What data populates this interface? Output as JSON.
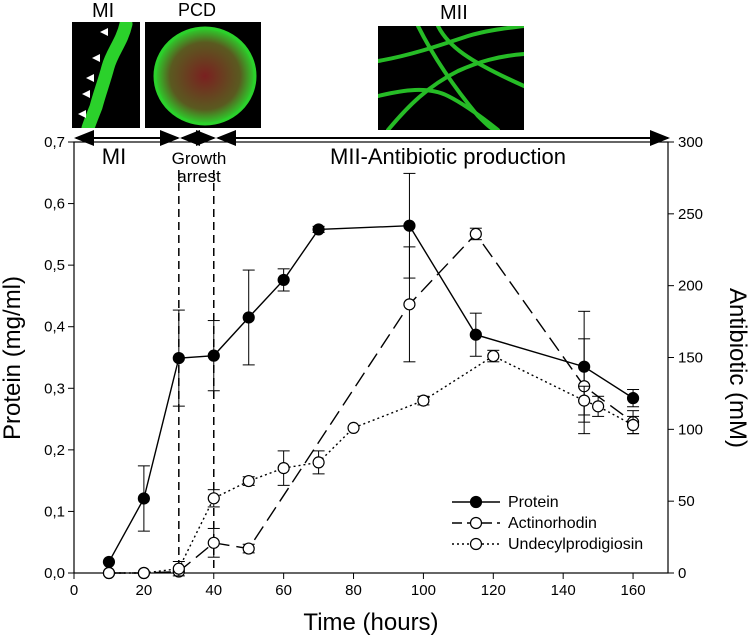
{
  "images": {
    "mi_label": "MI",
    "pcd_label": "PCD",
    "mii_label": "MII"
  },
  "phases": {
    "mi": "MI",
    "growth_arrest_line1": "Growth",
    "growth_arrest_line2": "arrest",
    "mii": "MII-Antibiotic production"
  },
  "colors": {
    "line": "#000000",
    "filled_marker": "#000000",
    "open_marker_fill": "#ffffff",
    "microscopy_green": "#2bd12b",
    "microscopy_red": "#8a1a1a"
  },
  "chart_data": {
    "type": "line",
    "xlabel": "Time (hours)",
    "ylabel_left": "Protein (mg/ml)",
    "ylabel_right": "Antibiotic (mM)",
    "xlim": [
      0,
      170
    ],
    "ylim_left": [
      0,
      0.7
    ],
    "ylim_right": [
      0,
      300
    ],
    "x_ticks": [
      0,
      20,
      40,
      60,
      80,
      100,
      120,
      140,
      160
    ],
    "y_left_ticks": [
      "0,0",
      "0,1",
      "0,2",
      "0,3",
      "0,4",
      "0,5",
      "0,6",
      "0,7"
    ],
    "y_right_ticks": [
      0,
      50,
      100,
      150,
      200,
      250,
      300
    ],
    "grid": false,
    "legend_position": "bottom-right",
    "series": [
      {
        "name": "Protein",
        "axis": "left",
        "marker": "filled-circle",
        "line_style": "solid",
        "x": [
          10,
          20,
          30,
          40,
          50,
          60,
          70,
          96,
          115,
          146,
          160
        ],
        "y": [
          0.018,
          0.121,
          0.349,
          0.353,
          0.415,
          0.476,
          0.558,
          0.564,
          0.387,
          0.335,
          0.284
        ],
        "err": [
          0.0,
          0.053,
          0.078,
          0.057,
          0.077,
          0.018,
          0.005,
          0.085,
          0.035,
          0.09,
          0.014
        ]
      },
      {
        "name": "Actinorhodin",
        "axis": "right",
        "marker": "open-circle",
        "line_style": "dashed",
        "x": [
          10,
          20,
          30,
          40,
          50,
          96,
          115,
          146,
          160
        ],
        "y": [
          0,
          0,
          1,
          21,
          17,
          187,
          236,
          130,
          105
        ],
        "err": [
          0,
          0,
          0,
          10,
          3,
          40,
          4,
          33,
          8
        ]
      },
      {
        "name": "Undecylprodigiosin",
        "axis": "right",
        "marker": "open-circle",
        "line_style": "dotted",
        "x": [
          10,
          20,
          30,
          40,
          50,
          60,
          70,
          80,
          100,
          120,
          146,
          150,
          160
        ],
        "y": [
          0,
          0,
          3,
          52,
          64,
          73,
          77,
          101,
          120,
          151,
          120,
          116,
          103
        ],
        "err": [
          0,
          0,
          5,
          6,
          3,
          12,
          8,
          0,
          3,
          4,
          10,
          7,
          6
        ]
      }
    ]
  }
}
